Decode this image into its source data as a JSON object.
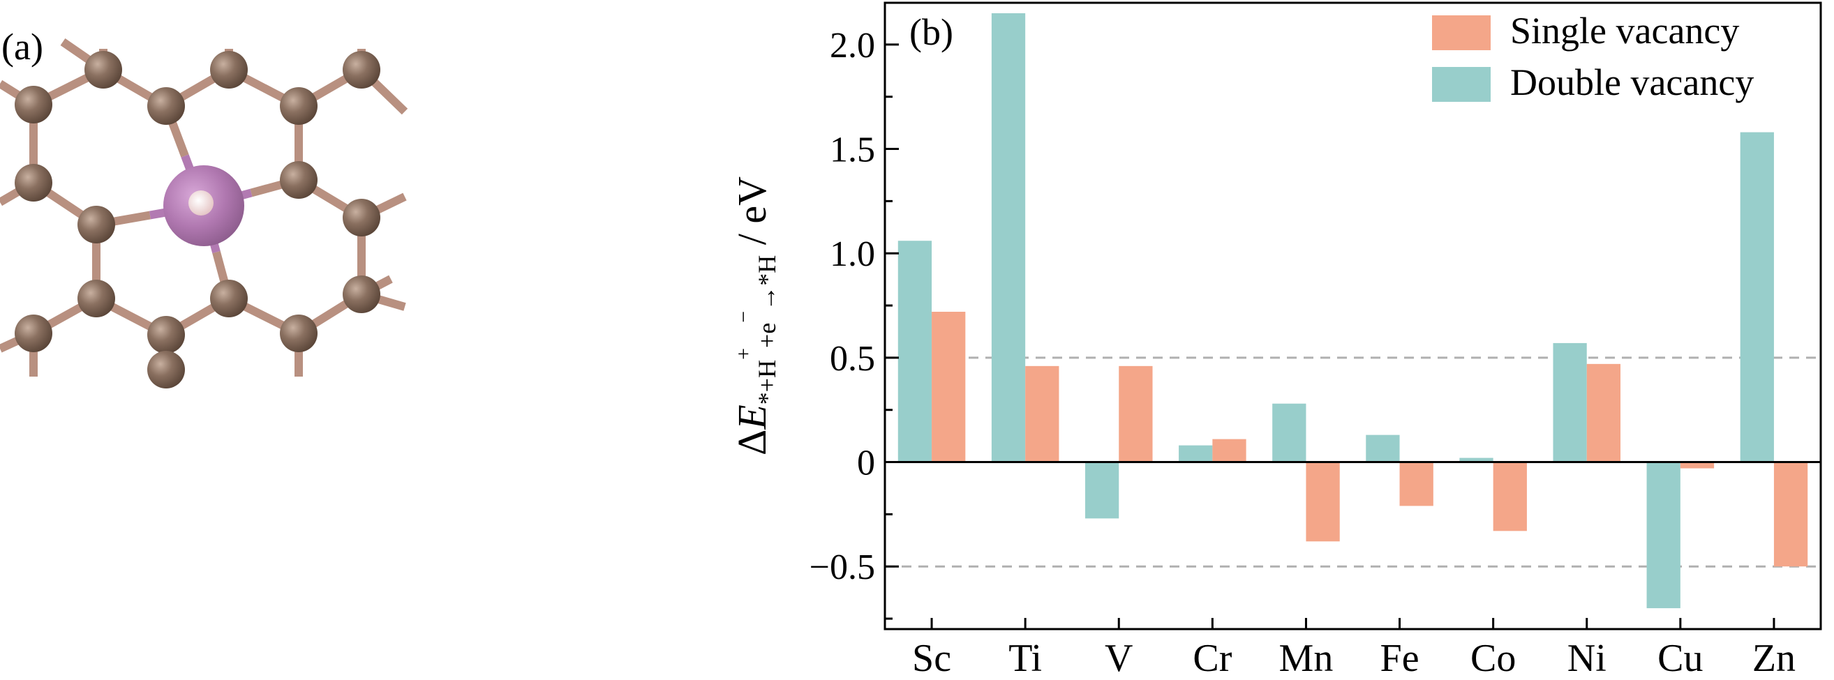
{
  "panel_a": {
    "label": "(a)",
    "atom_colors": {
      "carbon": "#8a7060",
      "metal": "#b070b0",
      "hydrogen": "#f0d8d8",
      "bond": "#b89080"
    }
  },
  "chart_data": {
    "type": "bar",
    "panel_label": "(b)",
    "categories": [
      "Sc",
      "Ti",
      "V",
      "Cr",
      "Mn",
      "Fe",
      "Co",
      "Ni",
      "Cu",
      "Zn"
    ],
    "series": [
      {
        "name": "Double vacancy",
        "color": "#98cecb",
        "values": [
          1.06,
          2.15,
          -0.27,
          0.08,
          0.28,
          0.13,
          0.02,
          0.57,
          -0.7,
          1.58
        ]
      },
      {
        "name": "Single vacancy",
        "color": "#f4a689",
        "values": [
          0.72,
          0.46,
          0.46,
          0.11,
          -0.38,
          -0.21,
          -0.33,
          0.47,
          -0.03,
          -0.5
        ]
      }
    ],
    "legend_order": [
      "Single vacancy",
      "Double vacancy"
    ],
    "legend_position": "top-right",
    "ylabel": "ΔE*+H⁺+e⁻→*H / eV",
    "ylabel_parts": {
      "delta": "Δ",
      "E": "E",
      "sub": "*+H",
      "sup1": "+",
      "sub2": "+e",
      "sup2": "−",
      "sub3": "→*H",
      "unit": " / eV"
    },
    "ylim": [
      -0.8,
      2.2
    ],
    "yticks": [
      -0.5,
      0,
      0.5,
      1.0,
      1.5,
      2.0
    ],
    "ytick_labels": [
      "−0.5",
      "0",
      "0.5",
      "1.0",
      "1.5",
      "2.0"
    ],
    "dashed_reference_lines": [
      0.5,
      -0.5
    ],
    "zero_line": true,
    "grid": false
  }
}
